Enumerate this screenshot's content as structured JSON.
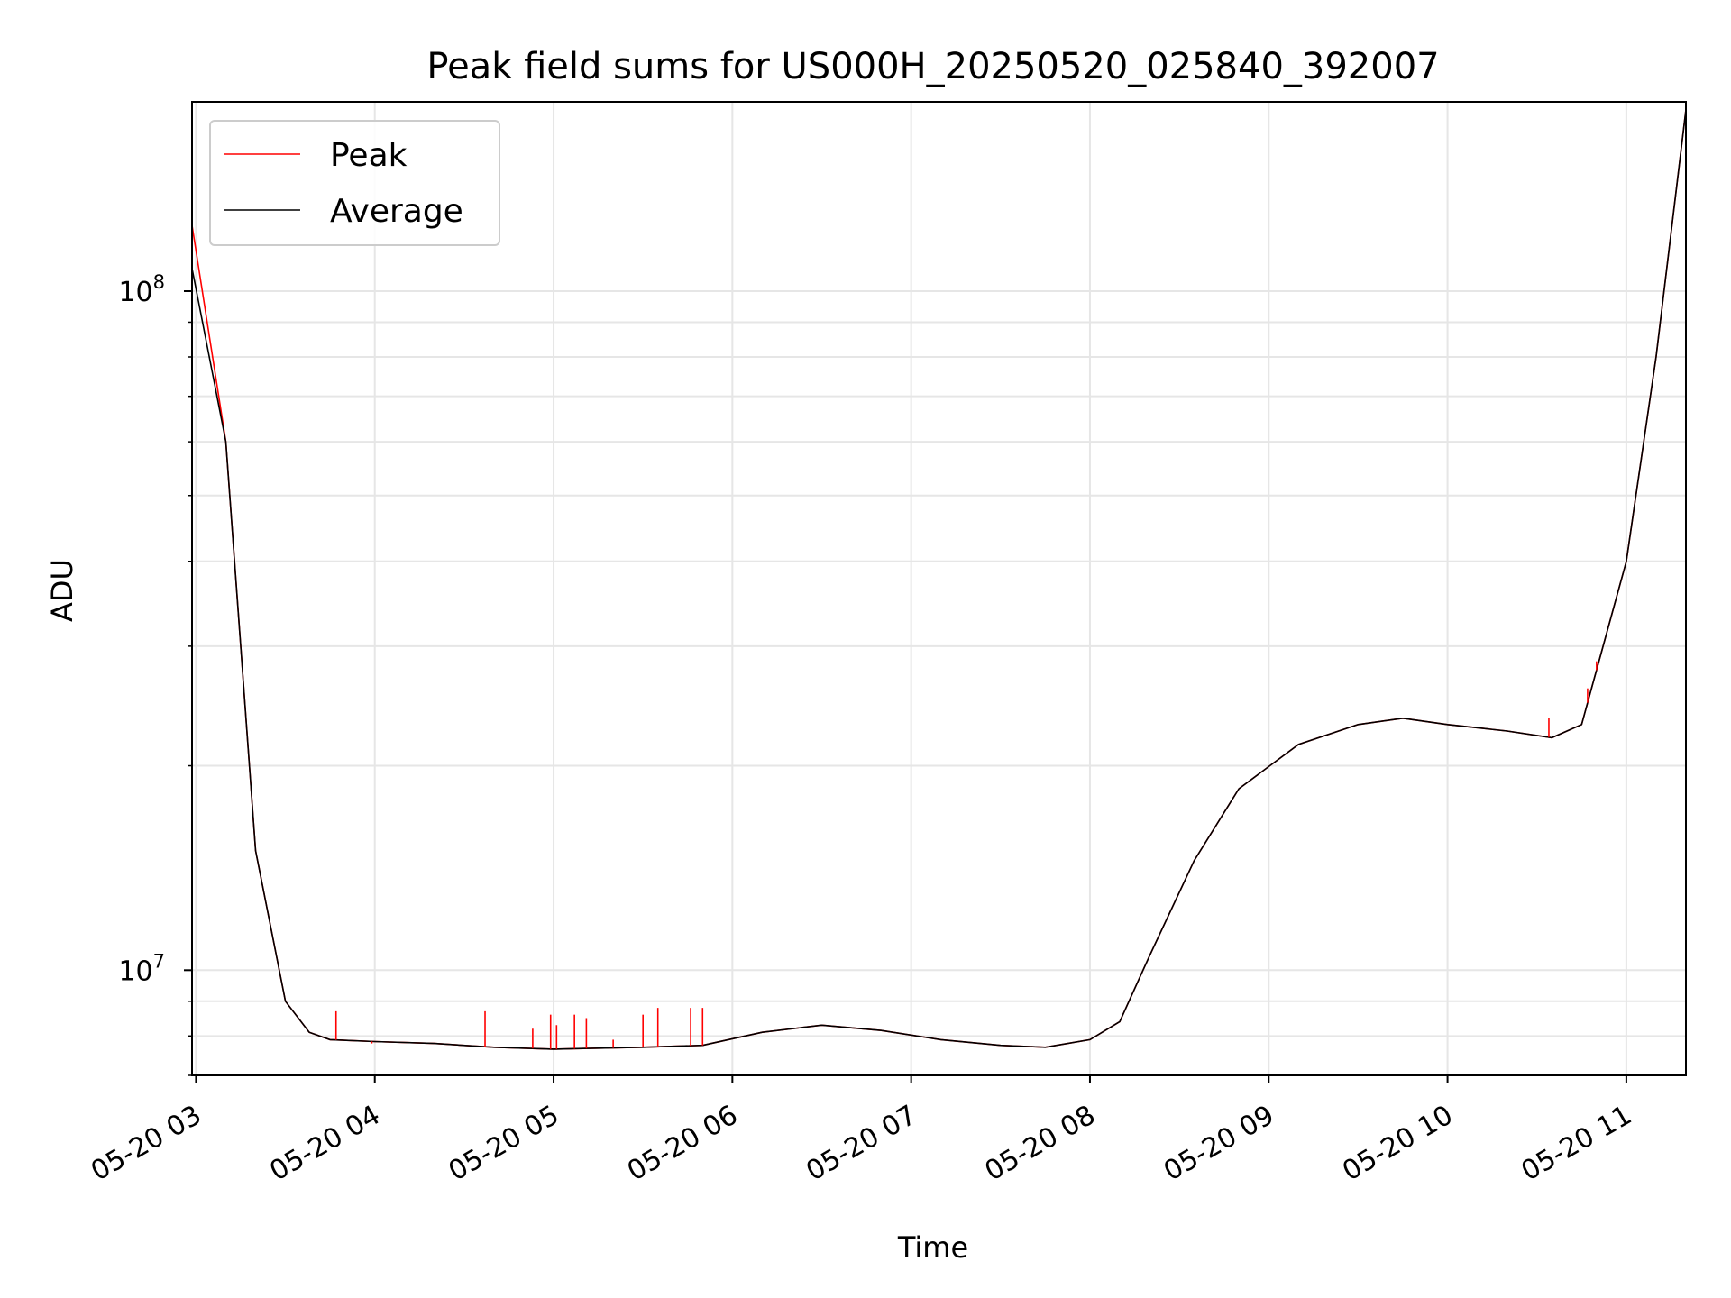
{
  "chart_data": {
    "type": "line",
    "title": "Peak field sums for US000H_20250520_025840_392007",
    "xlabel": "Time",
    "ylabel": "ADU",
    "yscale": "log",
    "xlim": [
      "2025-05-20 02:58:40",
      "2025-05-20 11:20:00"
    ],
    "ylim": [
      7000000,
      190000000
    ],
    "x_ticks": [
      "05-20 03",
      "05-20 04",
      "05-20 05",
      "05-20 06",
      "05-20 07",
      "05-20 08",
      "05-20 09",
      "05-20 10",
      "05-20 11"
    ],
    "y_ticks": [
      {
        "value": 10000000,
        "base": "10",
        "exp": "7"
      },
      {
        "value": 100000000,
        "base": "10",
        "exp": "8"
      }
    ],
    "grid": true,
    "legend_position": "upper left",
    "colors": {
      "Peak": "#ff0000",
      "Average": "#000000"
    },
    "x": [
      "2025-05-20 02:58:40",
      "2025-05-20 03:10",
      "2025-05-20 03:20",
      "2025-05-20 03:30",
      "2025-05-20 03:38",
      "2025-05-20 03:45",
      "2025-05-20 04:00",
      "2025-05-20 04:20",
      "2025-05-20 04:40",
      "2025-05-20 05:00",
      "2025-05-20 05:30",
      "2025-05-20 05:50",
      "2025-05-20 06:10",
      "2025-05-20 06:30",
      "2025-05-20 06:50",
      "2025-05-20 07:10",
      "2025-05-20 07:30",
      "2025-05-20 07:45",
      "2025-05-20 08:00",
      "2025-05-20 08:10",
      "2025-05-20 08:20",
      "2025-05-20 08:35",
      "2025-05-20 08:50",
      "2025-05-20 09:10",
      "2025-05-20 09:30",
      "2025-05-20 09:45",
      "2025-05-20 10:00",
      "2025-05-20 10:20",
      "2025-05-20 10:35",
      "2025-05-20 10:45",
      "2025-05-20 11:00",
      "2025-05-20 11:10",
      "2025-05-20 11:20"
    ],
    "series": [
      {
        "name": "Average",
        "values": [
          108000000,
          60000000,
          15000000,
          9000000,
          8100000,
          7900000,
          7850000,
          7800000,
          7700000,
          7650000,
          7700000,
          7750000,
          8100000,
          8300000,
          8150000,
          7900000,
          7750000,
          7700000,
          7900000,
          8400000,
          10500000,
          14500000,
          18500000,
          21500000,
          23000000,
          23500000,
          23000000,
          22500000,
          22000000,
          23000000,
          40000000,
          80000000,
          185000000
        ]
      },
      {
        "name": "Peak",
        "values": [
          125000000,
          60000000,
          15000000,
          9000000,
          8100000,
          7900000,
          7850000,
          7800000,
          7700000,
          7650000,
          7700000,
          7750000,
          8100000,
          8300000,
          8150000,
          7900000,
          7750000,
          7700000,
          7900000,
          8400000,
          10500000,
          14500000,
          18500000,
          21500000,
          23000000,
          23500000,
          23000000,
          22500000,
          22000000,
          23000000,
          40000000,
          80000000,
          185000000
        ]
      }
    ],
    "peak_spikes": [
      {
        "x": "2025-05-20 03:47",
        "value": 8700000
      },
      {
        "x": "2025-05-20 03:59",
        "value": 7800000
      },
      {
        "x": "2025-05-20 04:37",
        "value": 8700000
      },
      {
        "x": "2025-05-20 04:53",
        "value": 8200000
      },
      {
        "x": "2025-05-20 04:59",
        "value": 8600000
      },
      {
        "x": "2025-05-20 05:01",
        "value": 8300000
      },
      {
        "x": "2025-05-20 05:07",
        "value": 8600000
      },
      {
        "x": "2025-05-20 05:11",
        "value": 8500000
      },
      {
        "x": "2025-05-20 05:20",
        "value": 7900000
      },
      {
        "x": "2025-05-20 05:30",
        "value": 8600000
      },
      {
        "x": "2025-05-20 05:35",
        "value": 8800000
      },
      {
        "x": "2025-05-20 05:46",
        "value": 8800000
      },
      {
        "x": "2025-05-20 05:50",
        "value": 8800000
      },
      {
        "x": "2025-05-20 10:34",
        "value": 23500000
      },
      {
        "x": "2025-05-20 10:47",
        "value": 26000000
      },
      {
        "x": "2025-05-20 10:50",
        "value": 28500000
      }
    ]
  }
}
